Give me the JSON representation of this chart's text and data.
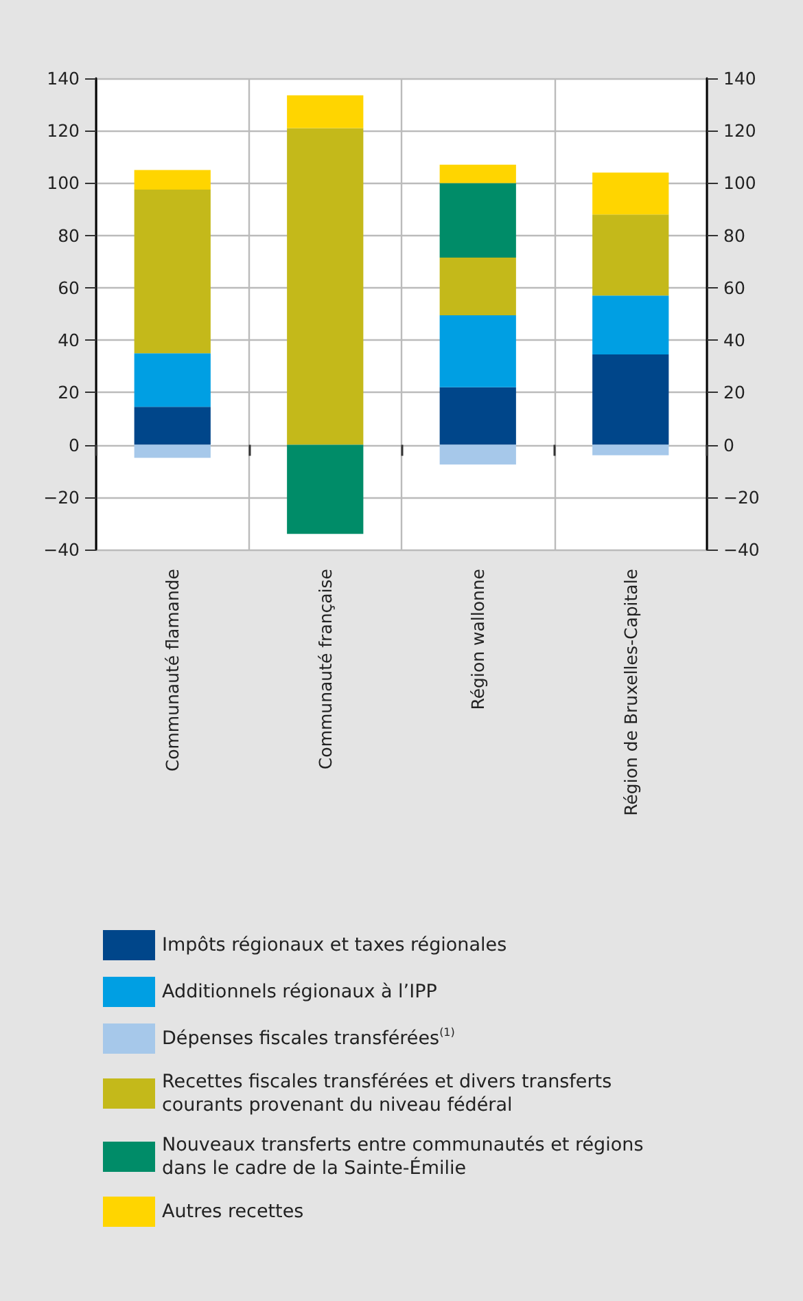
{
  "chart_data": {
    "type": "bar",
    "stacked": true,
    "categories": [
      "Communauté flamande",
      "Communauté française",
      "Région wallonne",
      "Région de Bruxelles-Capitale"
    ],
    "series": [
      {
        "name": "Impôts régionaux et taxes régionales",
        "color": "#00468a",
        "values": [
          14.5,
          null,
          22,
          34.5
        ]
      },
      {
        "name": "Additionnels régionaux à l’IPP",
        "color": "#009fe3",
        "values": [
          20.5,
          null,
          27.5,
          22.5
        ]
      },
      {
        "name": "Dépenses fiscales transférées$^{(1)}$",
        "color": "#a6c8ea",
        "values": [
          -5,
          null,
          -7.5,
          -4
        ]
      },
      {
        "name": "Recettes fiscales transférées et divers transferts courants provenant du niveau fédéral",
        "color": "#c4b91a",
        "values": [
          62.5,
          121,
          22,
          31
        ]
      },
      {
        "name": "Nouveaux transferts entre communautés et régions dans le cadre de la Sainte-Émilie",
        "color": "#008c68",
        "values": [
          null,
          -34,
          28.5,
          null
        ]
      },
      {
        "name": "Autres recettes",
        "color": "#ffd500",
        "values": [
          7.5,
          12.5,
          7,
          16
        ]
      }
    ],
    "ylim": [
      -40,
      140
    ],
    "yticks": [
      -40,
      -20,
      0,
      20,
      40,
      60,
      80,
      100,
      120,
      140
    ],
    "y2lim": [
      -40,
      140
    ],
    "y2ticks": [
      -40,
      -20,
      0,
      20,
      40,
      60,
      80,
      100,
      120,
      140
    ],
    "grid": true,
    "legend": "bottom"
  }
}
